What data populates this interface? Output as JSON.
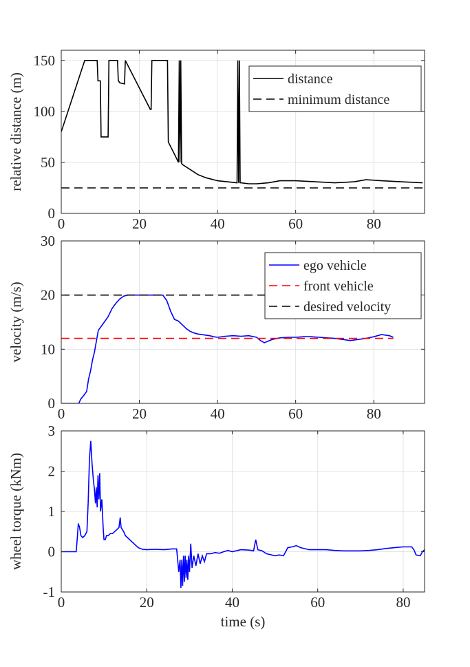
{
  "chart_data": [
    {
      "type": "line",
      "ylabel": "relative distance (m)",
      "xlabel": "",
      "xlim": [
        0,
        93
      ],
      "ylim": [
        0,
        160
      ],
      "xticks": [
        "0",
        "20",
        "40",
        "60",
        "80"
      ],
      "xtick_values": [
        0,
        20,
        40,
        60,
        80
      ],
      "yticks": [
        "0",
        "50",
        "100",
        "150"
      ],
      "ytick_values": [
        0,
        50,
        100,
        150
      ],
      "grid": true,
      "legend_position": "top-right",
      "series": [
        {
          "name": "distance",
          "color": "#000000",
          "dash": "solid",
          "x": [
            0,
            6,
            9.2,
            9.4,
            10,
            10.2,
            10.4,
            12,
            12.2,
            12.4,
            14.4,
            14.6,
            15,
            16.2,
            16.4,
            22.8,
            23,
            23.2,
            27.2,
            27.4,
            29,
            30,
            30.2,
            30.4,
            30.6,
            30.8,
            31,
            33,
            35,
            37,
            40,
            45,
            45.2,
            45.4,
            45.6,
            45.8,
            46,
            48,
            50,
            53,
            56,
            60,
            65,
            70,
            75,
            78,
            82,
            87,
            92.5
          ],
          "y": [
            80,
            150,
            150,
            130,
            130,
            75,
            75,
            75,
            150,
            150,
            150,
            130,
            128,
            127,
            150,
            102,
            102,
            150,
            150,
            70,
            58,
            50,
            150,
            50,
            150,
            49,
            48,
            43,
            38,
            35,
            32,
            30,
            150,
            30,
            150,
            30,
            30,
            29,
            29,
            30,
            32,
            32,
            31,
            30,
            31,
            33,
            32,
            31,
            30
          ]
        },
        {
          "name": "minimum distance",
          "color": "#000000",
          "dash": "dashed",
          "x": [
            0,
            92.5
          ],
          "y": [
            25,
            25
          ]
        }
      ]
    },
    {
      "type": "line",
      "ylabel": "velocity (m/s)",
      "xlabel": "",
      "xlim": [
        0,
        93
      ],
      "ylim": [
        0,
        30
      ],
      "xticks": [
        "0",
        "20",
        "40",
        "60",
        "80"
      ],
      "xtick_values": [
        0,
        20,
        40,
        60,
        80
      ],
      "yticks": [
        "0",
        "10",
        "20",
        "30"
      ],
      "ytick_values": [
        0,
        10,
        20,
        30
      ],
      "grid": true,
      "legend_position": "top-right",
      "series": [
        {
          "name": "ego vehicle",
          "color": "#0000ff",
          "dash": "solid",
          "x": [
            0,
            4.5,
            5,
            5.8,
            6.5,
            7,
            7.5,
            8,
            8.5,
            9,
            9.5,
            10,
            11,
            12,
            13,
            14,
            15,
            16,
            17,
            18,
            19,
            20,
            22,
            24,
            26,
            27,
            28,
            29,
            30,
            31,
            32,
            33,
            34,
            35,
            36,
            37,
            38,
            39,
            40,
            42,
            44,
            46,
            48,
            50,
            51,
            52,
            53,
            54,
            56,
            58,
            60,
            62,
            64,
            66,
            68,
            70,
            72,
            74,
            76,
            78,
            80,
            82,
            84,
            85
          ],
          "y": [
            0,
            0,
            0.8,
            1.5,
            2.2,
            4.5,
            6,
            8,
            9.5,
            11.5,
            13.5,
            14,
            15,
            16,
            17.5,
            18.5,
            19.3,
            19.8,
            20,
            20,
            20,
            20,
            20,
            20,
            20,
            19,
            17,
            15.5,
            15.2,
            14.5,
            13.8,
            13.3,
            13,
            12.8,
            12.7,
            12.6,
            12.5,
            12.3,
            12.2,
            12.4,
            12.5,
            12.4,
            12.5,
            12.2,
            11.6,
            11.2,
            11.5,
            11.8,
            12.1,
            12.2,
            12.2,
            12.3,
            12.3,
            12.2,
            12.1,
            12,
            11.8,
            11.6,
            11.8,
            12,
            12.3,
            12.7,
            12.5,
            12.2
          ]
        },
        {
          "name": "front vehicle",
          "color": "#ff0000",
          "dash": "dashed",
          "x": [
            0,
            85
          ],
          "y": [
            12,
            12
          ]
        },
        {
          "name": "desired velocity",
          "color": "#000000",
          "dash": "dashed",
          "x": [
            0,
            85
          ],
          "y": [
            20,
            20
          ]
        }
      ]
    },
    {
      "type": "line",
      "ylabel": "wheel torque (kNm)",
      "xlabel": "time (s)",
      "xlim": [
        0,
        85
      ],
      "ylim": [
        -1,
        3
      ],
      "xticks": [
        "0",
        "20",
        "40",
        "60",
        "80"
      ],
      "xtick_values": [
        0,
        20,
        40,
        60,
        80
      ],
      "yticks": [
        "-1",
        "0",
        "1",
        "2",
        "3"
      ],
      "ytick_values": [
        -1,
        0,
        1,
        2,
        3
      ],
      "grid": true,
      "legend_position": "none",
      "series": [
        {
          "name": "wheel torque",
          "color": "#0000ff",
          "dash": "solid",
          "x": [
            0,
            3.5,
            3.8,
            4,
            4.3,
            4.6,
            5,
            5.5,
            6,
            6.3,
            6.6,
            6.9,
            7.2,
            7.5,
            7.8,
            8,
            8.2,
            8.4,
            8.6,
            8.8,
            9,
            9.2,
            9.5,
            9.8,
            10,
            10.3,
            10.6,
            11,
            11.5,
            12,
            12.5,
            13,
            13.5,
            13.8,
            14,
            14.3,
            14.6,
            15,
            16,
            17,
            18,
            19,
            20,
            22,
            24,
            26,
            27,
            27.5,
            27.8,
            28,
            28.2,
            28.4,
            28.6,
            28.8,
            29,
            29.2,
            29.4,
            29.6,
            29.8,
            30,
            30.3,
            30.6,
            31,
            31.5,
            32,
            32.5,
            33,
            33.5,
            34,
            35,
            36,
            37,
            38,
            39,
            40,
            42,
            44,
            45,
            45.5,
            46,
            47,
            48,
            50,
            51,
            52,
            53,
            54,
            55,
            56,
            58,
            60,
            62,
            64,
            66,
            68,
            70,
            72,
            74,
            76,
            78,
            80,
            82,
            82.5,
            83,
            84,
            84.5,
            85
          ],
          "y": [
            0,
            0,
            0.4,
            0.7,
            0.6,
            0.4,
            0.35,
            0.4,
            0.5,
            1.2,
            2.3,
            2.75,
            2.2,
            1.8,
            1.5,
            1.2,
            1.6,
            1.1,
            1.9,
            1.3,
            1.95,
            1,
            1.3,
            0.6,
            0.3,
            0.3,
            0.4,
            0.4,
            0.45,
            0.45,
            0.5,
            0.55,
            0.6,
            0.85,
            0.6,
            0.55,
            0.5,
            0.4,
            0.3,
            0.2,
            0.1,
            0.06,
            0.05,
            0.06,
            0.05,
            0.07,
            0.07,
            -0.5,
            -0.2,
            -0.9,
            -0.2,
            -0.85,
            -0.1,
            -0.75,
            -0.1,
            -0.65,
            -0.2,
            -0.7,
            -0.1,
            -0.5,
            0.2,
            -0.4,
            -0.1,
            -0.35,
            -0.05,
            -0.3,
            -0.1,
            -0.25,
            -0.05,
            -0.05,
            -0.02,
            -0.04,
            0,
            0.03,
            0,
            0.05,
            0.04,
            0.02,
            0.3,
            0.05,
            0.02,
            -0.05,
            -0.1,
            -0.08,
            -0.1,
            0.1,
            0.12,
            0.15,
            0.1,
            0.05,
            0.05,
            0.05,
            0.03,
            0.02,
            0.02,
            0.02,
            0.03,
            0.05,
            0.08,
            0.1,
            0.12,
            0.12,
            0.05,
            -0.08,
            -0.1,
            0.0,
            0.05
          ]
        }
      ]
    }
  ]
}
